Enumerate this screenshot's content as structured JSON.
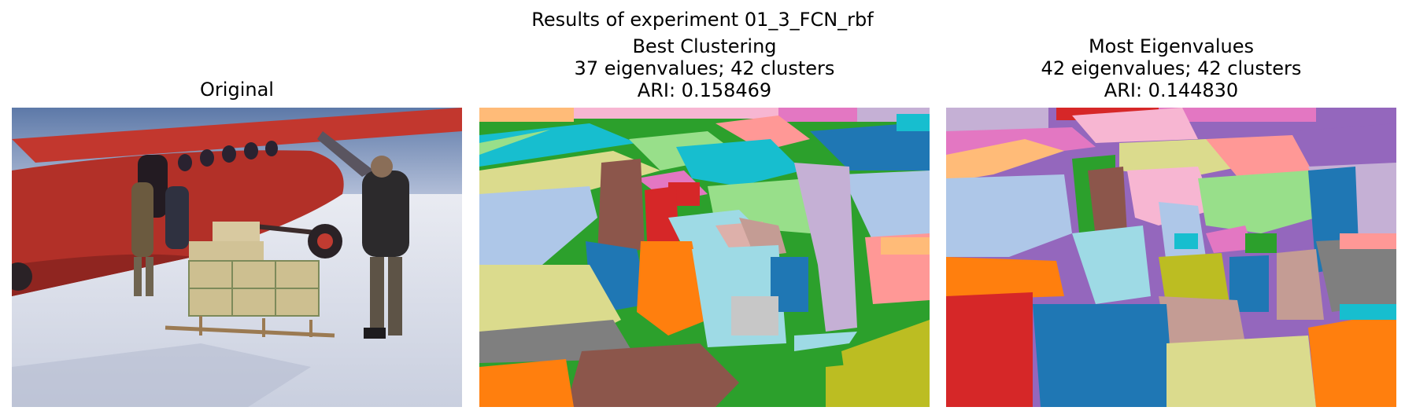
{
  "figure": {
    "suptitle": "Results of experiment 01_3_FCN_rbf"
  },
  "panels": [
    {
      "title_lines": [
        "Original"
      ],
      "image": "photo-airplane-sled-snow"
    },
    {
      "title_lines": [
        "Best Clustering",
        "37 eigenvalues; 42 clusters",
        "ARI: 0.158469"
      ],
      "image": "segmentation-map"
    },
    {
      "title_lines": [
        "Most Eigenvalues",
        "42 eigenvalues; 42 clusters",
        "ARI: 0.144830"
      ],
      "image": "segmentation-map"
    }
  ],
  "colors": {
    "plane_red": "#b8312a",
    "snow": "#dfe2ec",
    "sky": "#6f8bb7",
    "tab_blue": "#1f77b4",
    "tab_orange": "#ff7f0e",
    "tab_green": "#2ca02c",
    "tab_red": "#d62728",
    "tab_purple": "#9467bd",
    "tab_brown": "#8c564b",
    "tab_pink": "#e377c2",
    "tab_gray": "#7f7f7f",
    "tab_olive": "#bcbd22",
    "tab_cyan": "#17becf",
    "light_blue": "#aec7e8",
    "light_green": "#98df8a",
    "light_cyan": "#9edae5",
    "light_purple": "#c5b0d5",
    "salmon": "#ff9896",
    "peach": "#ffbb78",
    "khaki": "#dbdb8d"
  }
}
